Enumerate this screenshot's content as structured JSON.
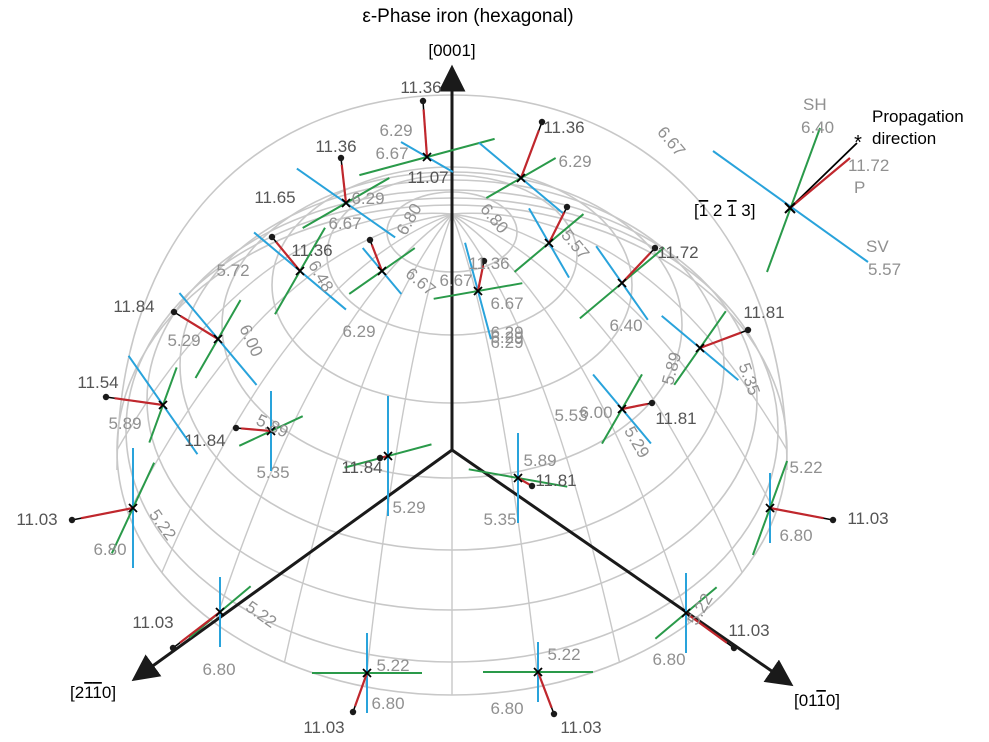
{
  "title": "ε-Phase iron (hexagonal)",
  "axes": {
    "c": "[0001]",
    "a1": "[2̄ 1̄ 0]",
    "a2": "[01̄ 1̄ 0]"
  },
  "axis_labels_raw": {
    "c": "[0001]",
    "a1_parts": [
      "[2",
      "1",
      "1",
      "0]"
    ],
    "a2_parts": [
      "[01",
      "1",
      "0]"
    ]
  },
  "legend": {
    "propagation": [
      "Propagation",
      "direction"
    ],
    "direction_label": [
      "[",
      "1",
      " 2 ",
      "1",
      " 3]"
    ],
    "SH": {
      "name": "SH",
      "value": "6.40"
    },
    "P": {
      "name": "P",
      "value": "11.72"
    },
    "SV": {
      "name": "SV",
      "value": "5.57"
    }
  },
  "colors": {
    "P": "#c0272d",
    "SV": "#29a3db",
    "SH": "#2a9a4a",
    "grid": "#c8c8c8",
    "axis": "#1a1a1a",
    "value_gray": "#909090",
    "value_dark": "#555555"
  },
  "p_values": [
    "11.36",
    "11.36",
    "11.36",
    "11.07",
    "11.65",
    "11.36",
    "11.36",
    "11.72",
    "11.84",
    "11.81",
    "11.54",
    "11.81",
    "11.84",
    "11.84",
    "11.81",
    "11.03",
    "11.03",
    "11.03",
    "11.03",
    "11.03",
    "11.03"
  ],
  "s_values": [
    "6.29",
    "6.67",
    "6.67",
    "6.29",
    "6.29",
    "6.67",
    "6.80",
    "6.80",
    "6.29",
    "6.67",
    "6.67",
    "6.29",
    "5.72",
    "6.48",
    "6.29",
    "6.67",
    "6.29",
    "5.57",
    "6.40",
    "5.29",
    "6.00",
    "5.89",
    "5.35",
    "5.89",
    "5.35",
    "5.53",
    "5.89",
    "6.00",
    "5.29",
    "5.29",
    "5.89",
    "5.35",
    "5.22",
    "6.80",
    "5.22",
    "6.80",
    "5.22",
    "6.80",
    "5.22",
    "6.80",
    "5.22",
    "6.80",
    "5.22",
    "6.80"
  ]
}
